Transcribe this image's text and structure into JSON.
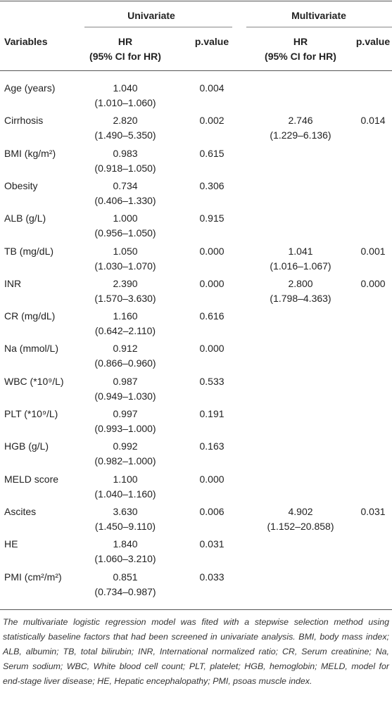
{
  "table": {
    "groups": [
      "Univariate",
      "Multivariate"
    ],
    "columns": [
      "Variables",
      "HR",
      "(95% CI for HR)",
      "p.value",
      "HR",
      "(95% CI for HR)",
      "p.value"
    ],
    "rows": [
      {
        "variable": "Age (years)",
        "uni_hr": "1.040",
        "uni_ci": "(1.010–1.060)",
        "uni_p": "0.004"
      },
      {
        "variable": "Cirrhosis",
        "uni_hr": "2.820",
        "uni_ci": "(1.490–5.350)",
        "uni_p": "0.002",
        "multi_hr": "2.746",
        "multi_ci": "(1.229–6.136)",
        "multi_p": "0.014"
      },
      {
        "variable": "BMI (kg/m²)",
        "uni_hr": "0.983",
        "uni_ci": "(0.918–1.050)",
        "uni_p": "0.615"
      },
      {
        "variable": "Obesity",
        "uni_hr": "0.734",
        "uni_ci": "(0.406–1.330)",
        "uni_p": "0.306"
      },
      {
        "variable": "ALB (g/L)",
        "uni_hr": "1.000",
        "uni_ci": "(0.956–1.050)",
        "uni_p": "0.915"
      },
      {
        "variable": "TB (mg/dL)",
        "uni_hr": "1.050",
        "uni_ci": "(1.030–1.070)",
        "uni_p": "0.000",
        "multi_hr": "1.041",
        "multi_ci": "(1.016–1.067)",
        "multi_p": "0.001"
      },
      {
        "variable": "INR",
        "uni_hr": "2.390",
        "uni_ci": "(1.570–3.630)",
        "uni_p": "0.000",
        "multi_hr": "2.800",
        "multi_ci": "(1.798–4.363)",
        "multi_p": "0.000"
      },
      {
        "variable": "CR (mg/dL)",
        "uni_hr": "1.160",
        "uni_ci": "(0.642–2.110)",
        "uni_p": "0.616"
      },
      {
        "variable": "Na (mmol/L)",
        "uni_hr": "0.912",
        "uni_ci": "(0.866–0.960)",
        "uni_p": "0.000"
      },
      {
        "variable": "WBC (*10⁹/L)",
        "uni_hr": "0.987",
        "uni_ci": "(0.949–1.030)",
        "uni_p": "0.533"
      },
      {
        "variable": "PLT (*10⁹/L)",
        "uni_hr": "0.997",
        "uni_ci": "(0.993–1.000)",
        "uni_p": "0.191"
      },
      {
        "variable": "HGB (g/L)",
        "uni_hr": "0.992",
        "uni_ci": "(0.982–1.000)",
        "uni_p": "0.163"
      },
      {
        "variable": "MELD score",
        "uni_hr": "1.100",
        "uni_ci": "(1.040–1.160)",
        "uni_p": "0.000"
      },
      {
        "variable": "Ascites",
        "uni_hr": "3.630",
        "uni_ci": "(1.450–9.110)",
        "uni_p": "0.006",
        "multi_hr": "4.902",
        "multi_ci": "(1.152–20.858)",
        "multi_p": "0.031"
      },
      {
        "variable": "HE",
        "uni_hr": "1.840",
        "uni_ci": "(1.060–3.210)",
        "uni_p": "0.031"
      },
      {
        "variable": "PMI (cm²/m²)",
        "uni_hr": "0.851",
        "uni_ci": "(0.734–0.987)",
        "uni_p": "0.033"
      }
    ]
  },
  "footnote": "The multivariate logistic regression model was fited with a stepwise selection method using statistically baseline factors that had been screened in univariate analysis. BMI, body mass index; ALB, albumin; TB, total bilirubin; INR, International normalized ratio; CR, Serum creatinine; Na, Serum sodium; WBC, White blood cell count; PLT, platelet; HGB, hemoglobin; MELD, model for end-stage liver disease; HE, Hepatic encephalopathy; PMI, psoas muscle index."
}
